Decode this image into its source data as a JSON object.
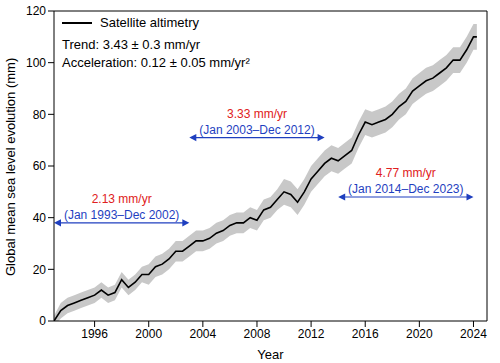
{
  "chart_data": {
    "type": "line",
    "x_label": "Year",
    "y_label": "Global mean sea level evolution (mm)",
    "x": [
      1993.0,
      1993.5,
      1994.0,
      1994.5,
      1995.0,
      1995.5,
      1996.0,
      1996.5,
      1997.0,
      1997.5,
      1998.0,
      1998.5,
      1999.0,
      1999.5,
      2000.0,
      2000.5,
      2001.0,
      2001.5,
      2002.0,
      2002.5,
      2003.0,
      2003.5,
      2004.0,
      2004.5,
      2005.0,
      2005.5,
      2006.0,
      2006.5,
      2007.0,
      2007.5,
      2008.0,
      2008.5,
      2009.0,
      2009.5,
      2010.0,
      2010.5,
      2011.0,
      2011.5,
      2012.0,
      2012.5,
      2013.0,
      2013.5,
      2014.0,
      2014.5,
      2015.0,
      2015.5,
      2016.0,
      2016.5,
      2017.0,
      2017.5,
      2018.0,
      2018.5,
      2019.0,
      2019.5,
      2020.0,
      2020.5,
      2021.0,
      2021.5,
      2022.0,
      2022.5,
      2023.0,
      2023.5,
      2024.0,
      2024.25
    ],
    "series": [
      {
        "name": "Satellite altimetry",
        "color": "#000000",
        "values": [
          0,
          4,
          6,
          7,
          8,
          9,
          10,
          12,
          10,
          11,
          16,
          13,
          15,
          18,
          18,
          21,
          22,
          24,
          27,
          27,
          29,
          31,
          31,
          32,
          34,
          35,
          37,
          38,
          38,
          40,
          39,
          43,
          44,
          47,
          50,
          49,
          46,
          50,
          55,
          58,
          61,
          63,
          62,
          64,
          66,
          72,
          77,
          76,
          77,
          78,
          80,
          83,
          85,
          89,
          91,
          93,
          94,
          96,
          98,
          101,
          101,
          105,
          110,
          110
        ],
        "uncertainty": [
          2,
          3,
          3,
          3,
          3,
          3,
          3,
          3,
          3,
          3,
          3,
          3,
          3,
          3,
          4,
          4,
          4,
          4,
          4,
          4,
          4,
          4,
          4,
          4,
          4,
          4,
          4,
          4,
          4,
          4,
          4,
          4,
          4,
          4,
          5,
          5,
          5,
          5,
          5,
          5,
          5,
          5,
          5,
          5,
          5,
          5,
          5,
          5,
          5,
          5,
          5,
          5,
          5,
          5,
          5,
          5,
          5,
          5,
          5,
          5,
          5,
          5,
          5,
          5
        ]
      }
    ],
    "xlim": [
      1993,
      2025
    ],
    "xticks": [
      1996,
      2000,
      2004,
      2008,
      2012,
      2016,
      2020,
      2024
    ],
    "ylim": [
      0,
      120
    ],
    "yticks": [
      0,
      20,
      40,
      60,
      80,
      100,
      120
    ],
    "legend": "upper left",
    "grid": false,
    "stats_text": [
      "Trend: 3.43 ± 0.3 mm/yr",
      "Acceleration: 0.12 ± 0.05 mm/yr²"
    ],
    "periods": [
      {
        "rate": "2.13 mm/yr",
        "period": "(Jan 1993–Dec 2002)",
        "x": [
          1993,
          2003
        ],
        "y": 38
      },
      {
        "rate": "3.33 mm/yr",
        "period": "(Jan 2003–Dec 2012)",
        "x": [
          2003,
          2013
        ],
        "y": 71
      },
      {
        "rate": "4.77 mm/yr",
        "period": "(Jan 2014–Dec 2023)",
        "x": [
          2014,
          2024
        ],
        "y": 48
      }
    ]
  }
}
